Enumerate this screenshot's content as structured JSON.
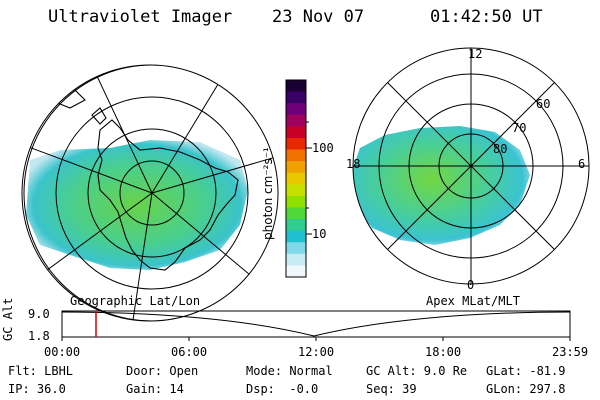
{
  "header": {
    "instrument": "Ultraviolet Imager",
    "date": "23 Nov 07",
    "time": "01:42:50 UT"
  },
  "left_map": {
    "caption": "Geographic Lat/Lon"
  },
  "right_map": {
    "caption": "Apex MLat/MLT",
    "mlt_labels": {
      "top": "12",
      "left": "18",
      "right": "6",
      "bottom": "0"
    },
    "lat_labels": [
      "60",
      "70",
      "80"
    ]
  },
  "colorbar": {
    "unit_label": "photon cm⁻²s⁻¹",
    "tick_labels": [
      "100",
      "10"
    ],
    "colors": [
      "#1a0033",
      "#3a0066",
      "#70007a",
      "#a00060",
      "#c80028",
      "#e82800",
      "#f07000",
      "#f0a000",
      "#e8c800",
      "#c8e000",
      "#90e000",
      "#50d838",
      "#30cc90",
      "#20c0d0",
      "#80d8e8",
      "#c8ecf4",
      "#f0f8fc"
    ]
  },
  "timeline": {
    "axis_label": "GC Alt",
    "y_ticks": [
      "9.0",
      "1.8"
    ],
    "x_ticks": [
      "00:00",
      "06:00",
      "12:00",
      "18:00",
      "23:59"
    ],
    "cursor_color": "#dd0000"
  },
  "status": {
    "flt": "Flt: LBHL",
    "ip": "IP: 36.0",
    "door": "Door: Open",
    "gain": "Gain: 14",
    "mode": "Mode: Normal",
    "dsp": "Dsp:  -0.0",
    "gc_alt": "GC Alt: 9.0 Re",
    "seq": "Seq: 39",
    "glat": "GLat: -81.9",
    "glon": "GLon: 297.8"
  }
}
